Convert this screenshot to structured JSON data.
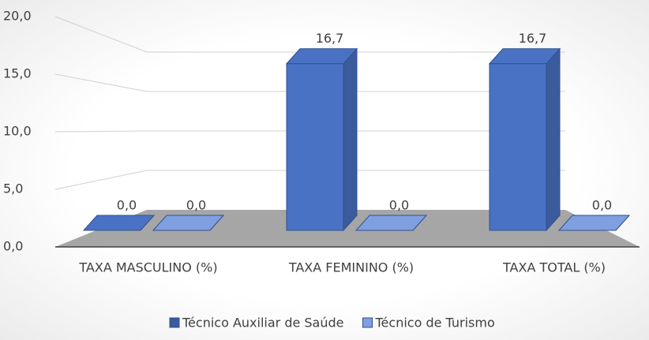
{
  "chart_data": {
    "type": "bar3d",
    "categories": [
      "TAXA MASCULINO (%)",
      "TAXA FEMININO (%)",
      "TAXA TOTAL (%)"
    ],
    "series": [
      {
        "name": "Técnico Auxiliar de Saúde",
        "color": "#4a72c4",
        "values": [
          0,
          16.7,
          16.7
        ],
        "value_labels": [
          "0,0",
          "16,7",
          "16,7"
        ]
      },
      {
        "name": "Técnico de Turismo",
        "color": "#7f9fe0",
        "values": [
          0,
          0,
          0
        ],
        "value_labels": [
          "0,0",
          "0,0",
          "0,0"
        ]
      }
    ],
    "ylim": [
      0,
      20
    ],
    "yticks": [
      {
        "value": 0,
        "label": "0,0"
      },
      {
        "value": 5,
        "label": "5,0"
      },
      {
        "value": 10,
        "label": "10,0"
      },
      {
        "value": 15,
        "label": "15,0"
      },
      {
        "value": 20,
        "label": "20,0"
      }
    ],
    "grid": true,
    "legend": "bottom"
  }
}
